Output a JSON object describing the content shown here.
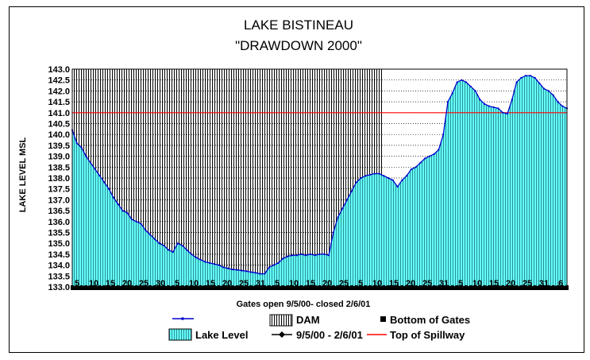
{
  "chart_data": {
    "type": "area",
    "title": "LAKE BISTINEAU",
    "subtitle": "\"DRAWDOWN 2000\"",
    "xlabel": "Gates open 9/5/00- closed 2/6/01",
    "ylabel": "LAKE LEVEL MSL",
    "ylim": [
      133.0,
      143.0
    ],
    "y_ticks": [
      "143.0",
      "142.5",
      "142.0",
      "141.5",
      "141.0",
      "140.5",
      "140.0",
      "139.5",
      "139.0",
      "138.5",
      "138.0",
      "137.5",
      "137.0",
      "136.5",
      "136.0",
      "135.5",
      "135.0",
      "134.5",
      "134.0",
      "133.5",
      "133.0"
    ],
    "x_ticks": [
      "5",
      "10",
      "15",
      "20",
      "25",
      "30",
      "5",
      "10",
      "15",
      "20",
      "25",
      "31",
      "5",
      "10",
      "15",
      "20",
      "25",
      "5",
      "10",
      "15",
      "20",
      "25",
      "31",
      "5",
      "10",
      "15",
      "20",
      "25",
      "31",
      "6"
    ],
    "spillway_level": 141.0,
    "grid": true,
    "legend_position": "bottom",
    "series": [
      {
        "name": "Lake Level",
        "color": "#66ffff",
        "values": [
          140.2,
          139.6,
          139.4,
          139.0,
          138.7,
          138.4,
          138.1,
          137.8,
          137.5,
          137.1,
          136.8,
          136.5,
          136.4,
          136.1,
          136.0,
          135.9,
          135.6,
          135.4,
          135.2,
          135.0,
          134.9,
          134.7,
          134.6,
          135.0,
          134.9,
          134.7,
          134.5,
          134.35,
          134.25,
          134.15,
          134.1,
          134.05,
          134.0,
          133.9,
          133.85,
          133.8,
          133.78,
          133.75,
          133.72,
          133.68,
          133.65,
          133.6,
          133.6,
          133.9,
          134.0,
          134.1,
          134.3,
          134.4,
          134.45,
          134.45,
          134.5,
          134.45,
          134.5,
          134.45,
          134.5,
          134.5,
          134.45,
          135.5,
          136.2,
          136.6,
          137.0,
          137.4,
          137.8,
          138.0,
          138.1,
          138.15,
          138.2,
          138.2,
          138.1,
          138.0,
          137.9,
          137.6,
          137.9,
          138.1,
          138.4,
          138.5,
          138.7,
          138.9,
          139.0,
          139.1,
          139.3,
          140.0,
          141.5,
          141.9,
          142.4,
          142.5,
          142.4,
          142.2,
          142.0,
          141.6,
          141.4,
          141.3,
          141.25,
          141.2,
          141.0,
          140.95,
          141.6,
          142.4,
          142.6,
          142.7,
          142.7,
          142.6,
          142.35,
          142.1,
          142.0,
          141.8,
          141.5,
          141.3,
          141.2
        ]
      },
      {
        "name": "DAM"
      },
      {
        "name": "Bottom of Gates"
      },
      {
        "name": "9/5/00 - 2/6/01"
      },
      {
        "name": "Top of Spillway",
        "color": "#ff0000"
      }
    ]
  },
  "legend": {
    "lake_level": "Lake Level",
    "dam": "DAM",
    "bottom_of_gates": "Bottom of Gates",
    "gates_period": "9/5/00 - 2/6/01",
    "top_of_spillway": "Top of Spillway"
  }
}
